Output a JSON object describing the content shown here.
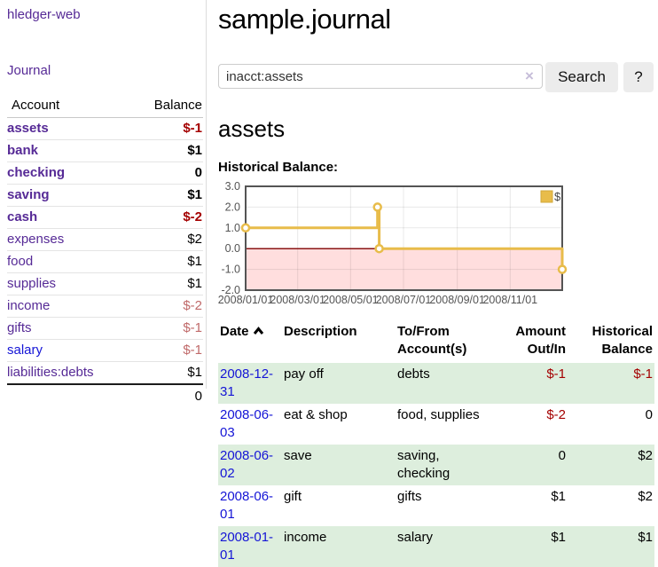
{
  "app": {
    "brand": "hledger-web",
    "journal_link": "Journal"
  },
  "sidebar": {
    "account_header": "Account",
    "balance_header": "Balance",
    "rows": [
      {
        "account": "assets",
        "balance": "$-1",
        "level": 1,
        "bold": true,
        "tone": "neg-strong",
        "link": "purple"
      },
      {
        "account": "bank",
        "balance": "$1",
        "level": 2,
        "bold": true,
        "tone": "plain",
        "link": "purple"
      },
      {
        "account": "checking",
        "balance": "0",
        "level": 3,
        "bold": true,
        "tone": "plain",
        "link": "purple"
      },
      {
        "account": "saving",
        "balance": "$1",
        "level": 3,
        "bold": true,
        "tone": "plain",
        "link": "purple"
      },
      {
        "account": "cash",
        "balance": "$-2",
        "level": 2,
        "bold": true,
        "tone": "neg-strong",
        "link": "purple"
      },
      {
        "account": "expenses",
        "balance": "$2",
        "level": 1,
        "bold": false,
        "tone": "plain",
        "link": "purple"
      },
      {
        "account": "food",
        "balance": "$1",
        "level": 2,
        "bold": false,
        "tone": "plain",
        "link": "purple"
      },
      {
        "account": "supplies",
        "balance": "$1",
        "level": 2,
        "bold": false,
        "tone": "plain",
        "link": "purple"
      },
      {
        "account": "income",
        "balance": "$-2",
        "level": 1,
        "bold": false,
        "tone": "neg-muted",
        "link": "purple"
      },
      {
        "account": "gifts",
        "balance": "$-1",
        "level": 2,
        "bold": false,
        "tone": "neg-muted",
        "link": "purple"
      },
      {
        "account": "salary",
        "balance": "$-1",
        "level": 2,
        "bold": false,
        "tone": "neg-muted",
        "link": "blue"
      },
      {
        "account": "liabilities:debts",
        "balance": "$1",
        "level": 1,
        "bold": false,
        "tone": "plain",
        "link": "purple"
      }
    ],
    "total": "0"
  },
  "main": {
    "title": "sample.journal",
    "search": {
      "value": "inacct:assets",
      "clear_icon": "×",
      "search_button": "Search",
      "help_button": "?"
    },
    "account_heading": "assets",
    "section_label": "Historical Balance:"
  },
  "chart_data": {
    "type": "line",
    "step": true,
    "title": "Historical Balance",
    "xlim": [
      "2008-01-01",
      "2008-12-31"
    ],
    "ylim": [
      -2,
      3
    ],
    "yticks": [
      3.0,
      2.0,
      1.0,
      0.0,
      -1.0,
      -2.0
    ],
    "xticks": [
      "2008/01/01",
      "2008/03/01",
      "2008/05/01",
      "2008/07/01",
      "2008/09/01",
      "2008/11/01"
    ],
    "series": [
      {
        "name": "$",
        "color": "#e8bc4a",
        "points": [
          [
            "2008-01-01",
            1
          ],
          [
            "2008-06-01",
            2
          ],
          [
            "2008-06-03",
            0
          ],
          [
            "2008-12-31",
            -1
          ]
        ]
      }
    ],
    "legend_position": "top-right",
    "grid": true,
    "zero_line_color": "#8b1414",
    "negative_region_color": "#ffdede",
    "axis_text_color": "#545454",
    "border_color": "#545454"
  },
  "register": {
    "headers": {
      "date": "Date",
      "description": "Description",
      "accounts": "To/From Account(s)",
      "amount": "Amount Out/In",
      "balance": "Historical Balance"
    },
    "rows": [
      {
        "date": "2008-12-31",
        "description": "pay off",
        "accounts": "debts",
        "amount": "$-1",
        "balance": "$-1",
        "amount_neg": true,
        "balance_neg": true
      },
      {
        "date": "2008-06-03",
        "description": "eat & shop",
        "accounts": "food, supplies",
        "amount": "$-2",
        "balance": "0",
        "amount_neg": true,
        "balance_neg": false
      },
      {
        "date": "2008-06-02",
        "description": "save",
        "accounts": "saving, checking",
        "amount": "0",
        "balance": "$2",
        "amount_neg": false,
        "balance_neg": false
      },
      {
        "date": "2008-06-01",
        "description": "gift",
        "accounts": "gifts",
        "amount": "$1",
        "balance": "$2",
        "amount_neg": false,
        "balance_neg": false
      },
      {
        "date": "2008-01-01",
        "description": "income",
        "accounts": "salary",
        "amount": "$1",
        "balance": "$1",
        "amount_neg": false,
        "balance_neg": false
      }
    ]
  }
}
